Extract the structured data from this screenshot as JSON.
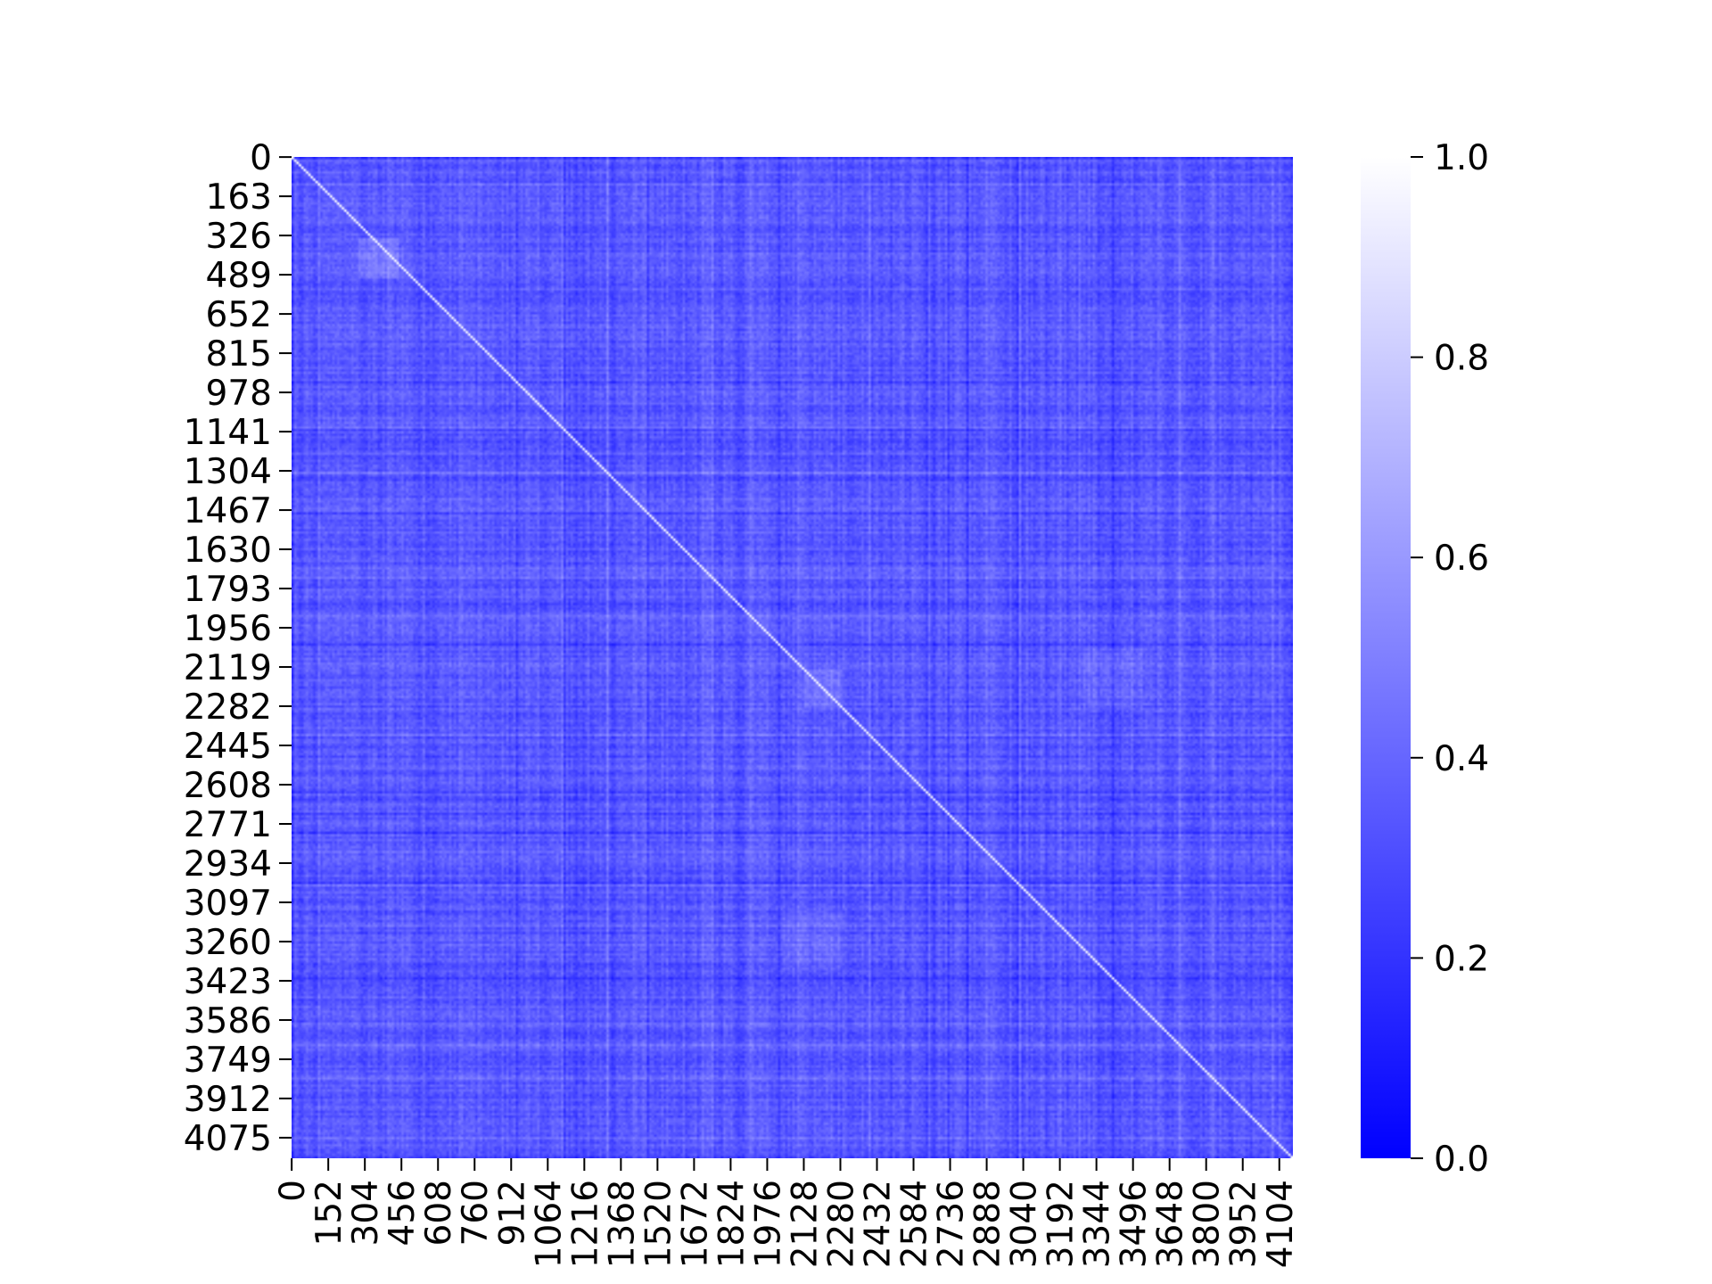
{
  "chart_data": {
    "type": "heatmap",
    "title": "",
    "xlabel": "",
    "ylabel": "",
    "matrix_size": 4161,
    "xlim": [
      0,
      4161
    ],
    "ylim": [
      0,
      4161
    ],
    "x_tick_labels": [
      "0",
      "152",
      "304",
      "456",
      "608",
      "760",
      "912",
      "1064",
      "1216",
      "1368",
      "1520",
      "1672",
      "1824",
      "1976",
      "2128",
      "2280",
      "2432",
      "2584",
      "2736",
      "2888",
      "3040",
      "3192",
      "3344",
      "3496",
      "3648",
      "3800",
      "3952",
      "4104"
    ],
    "x_tick_values": [
      0,
      152,
      304,
      456,
      608,
      760,
      912,
      1064,
      1216,
      1368,
      1520,
      1672,
      1824,
      1976,
      2128,
      2280,
      2432,
      2584,
      2736,
      2888,
      3040,
      3192,
      3344,
      3496,
      3648,
      3800,
      3952,
      4104
    ],
    "y_tick_labels": [
      "0",
      "163",
      "326",
      "489",
      "652",
      "815",
      "978",
      "1141",
      "1304",
      "1467",
      "1630",
      "1793",
      "1956",
      "2119",
      "2282",
      "2445",
      "2608",
      "2771",
      "2934",
      "3097",
      "3260",
      "3423",
      "3586",
      "3749",
      "3912",
      "4075"
    ],
    "y_tick_values": [
      0,
      163,
      326,
      489,
      652,
      815,
      978,
      1141,
      1304,
      1467,
      1630,
      1793,
      1956,
      2119,
      2282,
      2445,
      2608,
      2771,
      2934,
      3097,
      3260,
      3423,
      3586,
      3749,
      3912,
      4075
    ],
    "colorbar": {
      "range": [
        0.0,
        1.0
      ],
      "tick_values": [
        0.0,
        0.2,
        0.4,
        0.6,
        0.8,
        1.0
      ],
      "tick_labels": [
        "0.0",
        "0.2",
        "0.4",
        "0.6",
        "0.8",
        "1.0"
      ],
      "color_low": "#0000ff",
      "color_high": "#ffffff"
    },
    "typical_value": 0.35,
    "value_spread": [
      0.2,
      0.55
    ],
    "diagonal_value": 1.0,
    "grid": false,
    "colorbar_position": "right"
  }
}
